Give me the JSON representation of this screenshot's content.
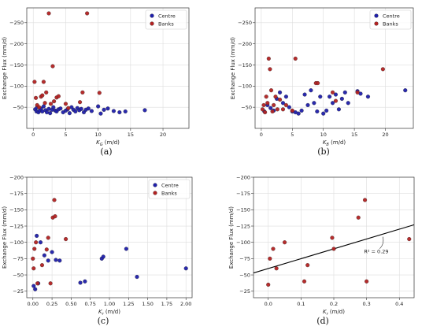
{
  "colors": {
    "centre": "#1f1faa",
    "banks": "#b22222",
    "grid": "#dddddd",
    "fit": "#000000"
  },
  "chart_data": [
    {
      "panel": "(a)",
      "type": "scatter",
      "xlabel_main": "K",
      "xlabel_sub": "G",
      "xlabel_unit": " (m/d)",
      "ylabel": "Exchange Flux (mm/d)",
      "xlim": [
        -1,
        24
      ],
      "ylim": [
        0,
        -285
      ],
      "y_inverted": true,
      "grid": true,
      "xticks": [
        0,
        5,
        10,
        15,
        20
      ],
      "yticks": [
        -50,
        -100,
        -150,
        -200,
        -250
      ],
      "xtick_labels": [
        "0",
        "5",
        "10",
        "15",
        "20"
      ],
      "ytick_labels": [
        "−50",
        "−100",
        "−150",
        "−200",
        "−250"
      ],
      "legend": [
        "Centre",
        "Banks"
      ],
      "legend_position": "top-right",
      "series": [
        {
          "name": "Centre",
          "color_key": "centre",
          "points": [
            [
              0.3,
              -45
            ],
            [
              0.5,
              -40
            ],
            [
              0.6,
              -50
            ],
            [
              0.8,
              -38
            ],
            [
              1,
              -42
            ],
            [
              1.2,
              -47
            ],
            [
              1.4,
              -40
            ],
            [
              1.6,
              -52
            ],
            [
              1.9,
              -43
            ],
            [
              2.1,
              -38
            ],
            [
              2.4,
              -46
            ],
            [
              2.6,
              -36
            ],
            [
              2.9,
              -44
            ],
            [
              3.1,
              -50
            ],
            [
              3.4,
              -42
            ],
            [
              3.6,
              -40
            ],
            [
              3.9,
              -45
            ],
            [
              4.2,
              -47
            ],
            [
              4.6,
              -38
            ],
            [
              5,
              -42
            ],
            [
              5.3,
              -45
            ],
            [
              5.6,
              -36
            ],
            [
              5.9,
              -50
            ],
            [
              6.2,
              -44
            ],
            [
              6.5,
              -40
            ],
            [
              6.8,
              -48
            ],
            [
              7.1,
              -43
            ],
            [
              7.4,
              -46
            ],
            [
              7.8,
              -38
            ],
            [
              8.1,
              -44
            ],
            [
              8.5,
              -47
            ],
            [
              9,
              -41
            ],
            [
              10,
              -52
            ],
            [
              10.4,
              -35
            ],
            [
              10.9,
              -44
            ],
            [
              11.5,
              -47
            ],
            [
              12.4,
              -41
            ],
            [
              13.3,
              -38
            ],
            [
              14.2,
              -40
            ],
            [
              17.2,
              -43
            ]
          ]
        },
        {
          "name": "Banks",
          "color_key": "banks",
          "points": [
            [
              0.2,
              -110
            ],
            [
              0.4,
              -72
            ],
            [
              0.6,
              -55
            ],
            [
              0.9,
              -50
            ],
            [
              1.2,
              -75
            ],
            [
              1.4,
              -78
            ],
            [
              1.6,
              -110
            ],
            [
              1.8,
              -60
            ],
            [
              2,
              -85
            ],
            [
              2.4,
              -272
            ],
            [
              2.7,
              -58
            ],
            [
              3,
              -147
            ],
            [
              3.2,
              -64
            ],
            [
              3.6,
              -73
            ],
            [
              3.9,
              -76
            ],
            [
              5,
              -58
            ],
            [
              5.4,
              -48
            ],
            [
              7.2,
              -62
            ],
            [
              7.6,
              -85
            ],
            [
              8.3,
              -272
            ],
            [
              10.2,
              -84
            ]
          ]
        }
      ]
    },
    {
      "panel": "(b)",
      "type": "scatter",
      "xlabel_main": "K",
      "xlabel_sub": "B",
      "xlabel_unit": " (m/d)",
      "ylabel": "Exchange Flux (mm/d)",
      "xlim": [
        -1,
        24.5
      ],
      "ylim": [
        0,
        -285
      ],
      "y_inverted": true,
      "grid": true,
      "xticks": [
        0,
        5,
        10,
        15,
        20
      ],
      "yticks": [
        -50,
        -100,
        -150,
        -200,
        -250
      ],
      "xtick_labels": [
        "0",
        "5",
        "10",
        "15",
        "20"
      ],
      "ytick_labels": [
        "−50",
        "−100",
        "−150",
        "−200",
        "−250"
      ],
      "legend": [
        "Centre",
        "Banks"
      ],
      "legend_position": "top-right",
      "series": [
        {
          "name": "Centre",
          "color_key": "centre",
          "points": [
            [
              0.5,
              -40
            ],
            [
              1,
              -55
            ],
            [
              1.5,
              -48
            ],
            [
              2,
              -42
            ],
            [
              2.5,
              -70
            ],
            [
              3,
              -85
            ],
            [
              3.5,
              -60
            ],
            [
              4,
              -75
            ],
            [
              4.5,
              -50
            ],
            [
              5,
              -40
            ],
            [
              5.5,
              -38
            ],
            [
              6,
              -35
            ],
            [
              6.5,
              -42
            ],
            [
              7,
              -80
            ],
            [
              7.5,
              -55
            ],
            [
              8,
              -90
            ],
            [
              8.5,
              -60
            ],
            [
              9,
              -40
            ],
            [
              9.5,
              -75
            ],
            [
              10,
              -35
            ],
            [
              10.5,
              -42
            ],
            [
              11,
              -75
            ],
            [
              11.5,
              -60
            ],
            [
              12,
              -80
            ],
            [
              12.5,
              -45
            ],
            [
              13,
              -70
            ],
            [
              13.5,
              -85
            ],
            [
              14,
              -60
            ],
            [
              15.5,
              -88
            ],
            [
              16,
              -82
            ],
            [
              17.2,
              -75
            ],
            [
              23.2,
              -90
            ]
          ]
        },
        {
          "name": "Banks",
          "color_key": "banks",
          "points": [
            [
              0.2,
              -45
            ],
            [
              0.4,
              -55
            ],
            [
              0.6,
              -38
            ],
            [
              0.8,
              -75
            ],
            [
              1,
              -60
            ],
            [
              1.2,
              -165
            ],
            [
              1.4,
              -140
            ],
            [
              1.6,
              -90
            ],
            [
              1.8,
              -40
            ],
            [
              2,
              -55
            ],
            [
              2.3,
              -75
            ],
            [
              2.6,
              -45
            ],
            [
              3,
              -68
            ],
            [
              3.5,
              -45
            ],
            [
              4,
              -55
            ],
            [
              5,
              -42
            ],
            [
              5.5,
              -165
            ],
            [
              8.8,
              -107
            ],
            [
              9.1,
              -107
            ],
            [
              11.5,
              -85
            ],
            [
              12,
              -65
            ],
            [
              15.5,
              -85
            ],
            [
              19.6,
              -140
            ]
          ]
        }
      ]
    },
    {
      "panel": "(c)",
      "type": "scatter",
      "xlabel_main": "K",
      "xlabel_sub": "r",
      "xlabel_unit": " (m/d)",
      "ylabel": "Exchange Flux (mm/d)",
      "xlim": [
        -0.08,
        2.08
      ],
      "ylim": [
        -15,
        -200
      ],
      "y_inverted": true,
      "grid": true,
      "xticks": [
        0,
        0.25,
        0.5,
        0.75,
        1,
        1.25,
        1.5,
        1.75,
        2
      ],
      "yticks": [
        -25,
        -50,
        -75,
        -100,
        -125,
        -150,
        -175,
        -200
      ],
      "xtick_labels": [
        "0.00",
        "0.25",
        "0.50",
        "0.75",
        "1.00",
        "1.25",
        "1.50",
        "1.75",
        "2.00"
      ],
      "ytick_labels": [
        "−25",
        "−50",
        "−75",
        "−100",
        "−125",
        "−150",
        "−175",
        "−200"
      ],
      "legend": [
        "Centre",
        "Banks"
      ],
      "legend_position": "top-right",
      "series": [
        {
          "name": "Centre",
          "color_key": "centre",
          "points": [
            [
              0.01,
              -33
            ],
            [
              0.03,
              -28
            ],
            [
              0.05,
              -110
            ],
            [
              0.07,
              -37
            ],
            [
              0.1,
              -100
            ],
            [
              0.15,
              -80
            ],
            [
              0.2,
              -72
            ],
            [
              0.25,
              -85
            ],
            [
              0.3,
              -73
            ],
            [
              0.35,
              -72
            ],
            [
              0.62,
              -38
            ],
            [
              0.68,
              -40
            ],
            [
              0.9,
              -75
            ],
            [
              0.92,
              -78
            ],
            [
              1.22,
              -90
            ],
            [
              1.36,
              -47
            ],
            [
              2,
              -60
            ]
          ]
        },
        {
          "name": "Banks",
          "color_key": "banks",
          "points": [
            [
              0,
              -75
            ],
            [
              0.01,
              -60
            ],
            [
              0.02,
              -90
            ],
            [
              0.04,
              -100
            ],
            [
              0.06,
              -37
            ],
            [
              0.12,
              -65
            ],
            [
              0.18,
              -89
            ],
            [
              0.2,
              -107
            ],
            [
              0.23,
              -37
            ],
            [
              0.26,
              -138
            ],
            [
              0.28,
              -165
            ],
            [
              0.29,
              -140
            ],
            [
              0.43,
              -105
            ]
          ]
        }
      ]
    },
    {
      "panel": "(d)",
      "type": "scatter",
      "xlabel_main": "K",
      "xlabel_sub": "r",
      "xlabel_unit": " (m/d)",
      "ylabel": "Exchange Flux (mm/d)",
      "xlim": [
        -0.045,
        0.445
      ],
      "ylim": [
        -15,
        -200
      ],
      "y_inverted": true,
      "grid": true,
      "xticks": [
        0,
        0.1,
        0.2,
        0.3,
        0.4
      ],
      "yticks": [
        -25,
        -50,
        -75,
        -100,
        -125,
        -150,
        -175,
        -200
      ],
      "xtick_labels": [
        "0.0",
        "0.1",
        "0.2",
        "0.3",
        "0.4"
      ],
      "ytick_labels": [
        "−25",
        "−50",
        "−75",
        "−100",
        "−125",
        "−150",
        "−175",
        "−200"
      ],
      "series": [
        {
          "name": "",
          "color_key": "banks",
          "points": [
            [
              0,
              -35
            ],
            [
              0.005,
              -75
            ],
            [
              0.015,
              -90
            ],
            [
              0.025,
              -60
            ],
            [
              0.05,
              -100
            ],
            [
              0.11,
              -40
            ],
            [
              0.12,
              -65
            ],
            [
              0.195,
              -107
            ],
            [
              0.2,
              -90
            ],
            [
              0.275,
              -138
            ],
            [
              0.295,
              -165
            ],
            [
              0.3,
              -40
            ],
            [
              0.43,
              -105
            ]
          ]
        }
      ],
      "fit_line": {
        "x": [
          -0.045,
          0.445
        ],
        "y": [
          -53,
          -127
        ]
      },
      "annotation": "R² = 0.29"
    }
  ]
}
